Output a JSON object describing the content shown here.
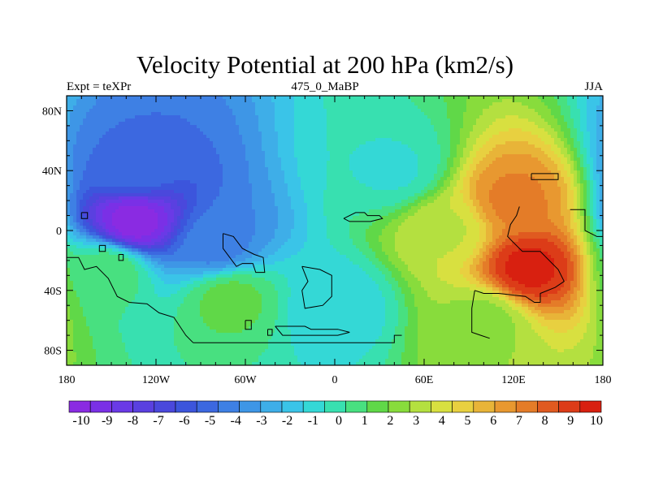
{
  "title": "Velocity Potential at 200 hPa (km2/s)",
  "left_label": "Expt = teXPr",
  "center_label": "475_0_MaBP",
  "right_label": "JJA",
  "map_data": {
    "projection": "cylindrical-equidistant",
    "lon_range": [
      -180,
      180
    ],
    "lat_range": [
      -90,
      90
    ],
    "field_range": [
      -10,
      10
    ],
    "centers": [
      {
        "lon": -135,
        "lat": 5,
        "value": -9.8
      },
      {
        "lon": -135,
        "lat": 42,
        "value": -4.5
      },
      {
        "lon": -80,
        "lat": -10,
        "value": -4.0
      },
      {
        "lon": -150,
        "lat": -25,
        "value": 1.0
      },
      {
        "lon": -70,
        "lat": -45,
        "value": 1.5
      },
      {
        "lon": 130,
        "lat": -25,
        "value": 9.5
      },
      {
        "lon": 120,
        "lat": 20,
        "value": 7.0
      },
      {
        "lon": 100,
        "lat": -60,
        "value": 2.5
      },
      {
        "lon": 75,
        "lat": 0,
        "value": 3.5
      },
      {
        "lon": 40,
        "lat": 40,
        "value": -0.5
      },
      {
        "lon": 0,
        "lat": -50,
        "value": -1.0
      }
    ]
  },
  "axes": {
    "x_ticks": [
      "180",
      "120W",
      "60W",
      "0",
      "60E",
      "120E",
      "180"
    ],
    "y_ticks": [
      "80N",
      "40N",
      "0",
      "40S",
      "80S"
    ]
  },
  "colorbar": {
    "labels": [
      "-10",
      "-9",
      "-8",
      "-7",
      "-6",
      "-5",
      "-4",
      "-3",
      "-2",
      "-1",
      "0",
      "1",
      "2",
      "3",
      "4",
      "5",
      "6",
      "7",
      "8",
      "9",
      "10"
    ],
    "colors": [
      "#8a2be2",
      "#7a30e6",
      "#6a3ae6",
      "#5a40e0",
      "#4a48dc",
      "#3c55dc",
      "#3c68e0",
      "#3e80e4",
      "#3e96e6",
      "#3eaee8",
      "#3ac4e8",
      "#34d8d6",
      "#38e0b0",
      "#48e080",
      "#60d848",
      "#88dc3c",
      "#b4e040",
      "#d8e040",
      "#e8d040",
      "#e8b438",
      "#e89830",
      "#e47c28",
      "#e05a20",
      "#dc3c18",
      "#d82010"
    ]
  }
}
